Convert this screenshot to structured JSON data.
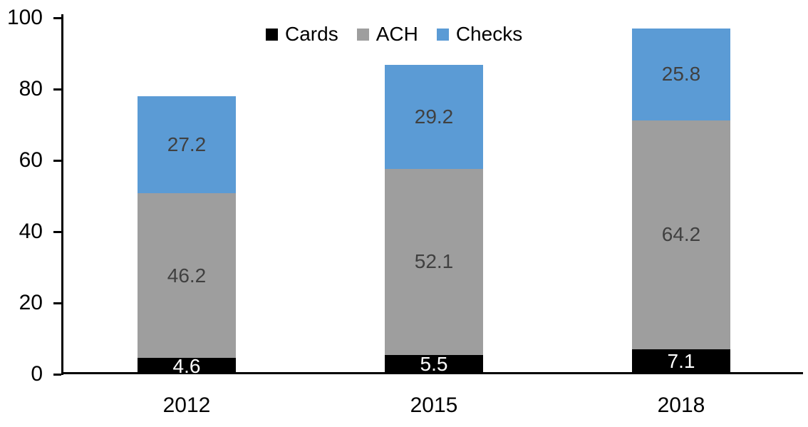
{
  "chart_data": {
    "type": "bar",
    "stacked": true,
    "title": "",
    "categories": [
      "2012",
      "2015",
      "2018"
    ],
    "series": [
      {
        "name": "Cards",
        "color": "#000000",
        "label_color": "#FFFFFF",
        "values": [
          4.6,
          5.5,
          7.1
        ]
      },
      {
        "name": "ACH",
        "color": "#9E9E9E",
        "label_color": "#404040",
        "values": [
          46.2,
          52.1,
          64.2
        ]
      },
      {
        "name": "Checks",
        "color": "#5B9BD5",
        "label_color": "#404040",
        "values": [
          27.2,
          29.2,
          25.8
        ]
      }
    ],
    "totals": [
      78.0,
      86.8,
      97.1
    ],
    "ylim": [
      0,
      100
    ],
    "yticks": [
      0,
      20,
      40,
      60,
      80,
      100
    ],
    "grid": false,
    "legend_position": "top-center",
    "legend_labels": [
      "Cards",
      "ACH",
      "Checks"
    ],
    "axis_color": "#000000",
    "xlabel": "",
    "ylabel": ""
  }
}
